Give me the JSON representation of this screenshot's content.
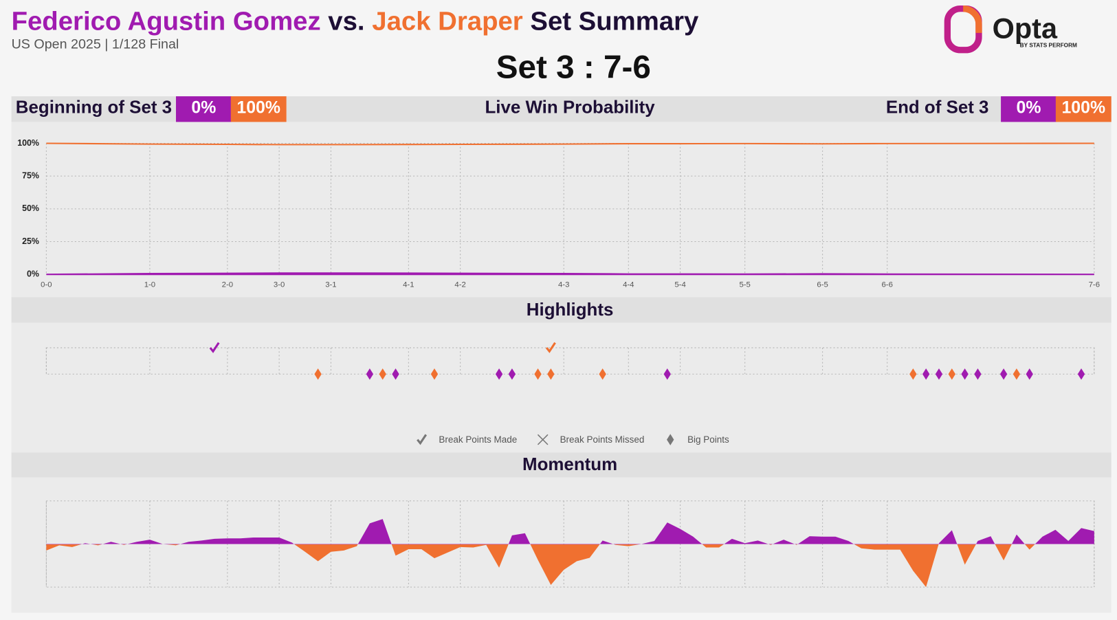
{
  "header": {
    "players": [
      {
        "name": "Federico Agustin Gomez",
        "color": "#a01bb0"
      },
      {
        "name": "Jack Draper",
        "color": "#f07030"
      }
    ],
    "vs": "vs.",
    "suffix": "Set Summary",
    "subtitle": "US Open 2025 | 1/128 Final",
    "score": "Set 3 : 7-6",
    "logo": "Opta",
    "logo_sub": "BY STATS PERFORM"
  },
  "win_bars": {
    "begin": {
      "label": "Beginning of Set 3",
      "values": [
        0,
        100
      ],
      "value_labels": [
        "0%",
        "100%"
      ]
    },
    "end": {
      "label": "End of Set 3",
      "values": [
        0,
        100
      ],
      "value_labels": [
        "0%",
        "100%"
      ]
    }
  },
  "chart_data": [
    {
      "type": "line",
      "title": "Live Win Probability",
      "x": [
        0,
        8,
        14,
        18,
        22,
        28,
        32,
        40,
        45,
        49,
        54,
        60,
        65,
        81
      ],
      "series": [
        {
          "name": "Federico Agustin Gomez",
          "color": "#a01bb0",
          "values": [
            0,
            0.6,
            0.8,
            1,
            1,
            0.9,
            0.8,
            0.6,
            0.3,
            0.3,
            0.2,
            0.4,
            0.2,
            0
          ]
        },
        {
          "name": "Jack Draper",
          "color": "#f07030",
          "values": [
            100,
            99.4,
            99.2,
            99,
            99,
            99.1,
            99.2,
            99.4,
            99.7,
            99.7,
            99.8,
            99.6,
            99.8,
            100
          ]
        }
      ],
      "xlim": [
        0,
        81
      ],
      "xticks": [
        {
          "value": 0,
          "label": "0-0"
        },
        {
          "value": 8,
          "label": "1-0"
        },
        {
          "value": 14,
          "label": "2-0"
        },
        {
          "value": 18,
          "label": "3-0"
        },
        {
          "value": 22,
          "label": "3-1"
        },
        {
          "value": 28,
          "label": "4-1"
        },
        {
          "value": 32,
          "label": "4-2"
        },
        {
          "value": 40,
          "label": "4-3"
        },
        {
          "value": 45,
          "label": "4-4"
        },
        {
          "value": 49,
          "label": "5-4"
        },
        {
          "value": 54,
          "label": "5-5"
        },
        {
          "value": 60,
          "label": "6-5"
        },
        {
          "value": 65,
          "label": "6-6"
        },
        {
          "value": 81,
          "label": "7-6"
        }
      ],
      "ylim": [
        0,
        100
      ],
      "yticks": [
        {
          "value": 0,
          "label": "0%"
        },
        {
          "value": 25,
          "label": "25%"
        },
        {
          "value": 50,
          "label": "50%"
        },
        {
          "value": 75,
          "label": "75%"
        },
        {
          "value": 100,
          "label": "100%"
        }
      ],
      "grid": true
    },
    {
      "type": "scatter",
      "title": "Highlights",
      "xlim": [
        0,
        81
      ],
      "series": [
        {
          "name": "Break Points Made",
          "marker": "check",
          "color": "#777777",
          "x": [
            13,
            39
          ],
          "point_colors": [
            "#a01bb0",
            "#f07030"
          ]
        },
        {
          "name": "Break Points Missed",
          "marker": "cross",
          "color": "#777777",
          "x": [],
          "point_colors": []
        },
        {
          "name": "Big Points",
          "marker": "diamond",
          "color": "#777777",
          "x": [
            21,
            25,
            26,
            27,
            30,
            35,
            36,
            38,
            39,
            43,
            48,
            67,
            68,
            69,
            70,
            71,
            72,
            74,
            75,
            76,
            80
          ],
          "point_colors": [
            "#f07030",
            "#a01bb0",
            "#f07030",
            "#a01bb0",
            "#f07030",
            "#a01bb0",
            "#a01bb0",
            "#f07030",
            "#f07030",
            "#f07030",
            "#a01bb0",
            "#f07030",
            "#a01bb0",
            "#a01bb0",
            "#f07030",
            "#a01bb0",
            "#a01bb0",
            "#a01bb0",
            "#f07030",
            "#a01bb0",
            "#a01bb0"
          ]
        }
      ],
      "grid": true
    },
    {
      "type": "area",
      "title": "Momentum",
      "xlim": [
        0,
        81
      ],
      "ylim": [
        -10,
        10
      ],
      "positive_color": "#a01bb0",
      "negative_color": "#f07030",
      "x": [
        0,
        1,
        2,
        3,
        4,
        5,
        6,
        7,
        8,
        9,
        10,
        11,
        12,
        13,
        14,
        15,
        16,
        17,
        18,
        19,
        20,
        21,
        22,
        23,
        24,
        25,
        26,
        27,
        28,
        29,
        30,
        31,
        32,
        33,
        34,
        35,
        36,
        37,
        38,
        39,
        40,
        41,
        42,
        43,
        44,
        45,
        46,
        47,
        48,
        49,
        50,
        51,
        52,
        53,
        54,
        55,
        56,
        57,
        58,
        59,
        60,
        61,
        62,
        63,
        64,
        65,
        66,
        67,
        68,
        69,
        70,
        71,
        72,
        73,
        74,
        75,
        76,
        77,
        78,
        79,
        80,
        81
      ],
      "values": [
        -1.5,
        -0.3,
        -0.7,
        0.2,
        -0.3,
        0.5,
        -0.2,
        0.5,
        1,
        0,
        -0.3,
        0.5,
        0.8,
        1.2,
        1.3,
        1.3,
        1.5,
        1.5,
        1.5,
        0.3,
        -1.8,
        -4,
        -1.8,
        -1.5,
        -0.5,
        4.8,
        5.8,
        -2.7,
        -1.2,
        -1.2,
        -3.3,
        -2,
        -0.7,
        -0.8,
        -0.2,
        -5.5,
        2,
        2.5,
        -3.7,
        -9.5,
        -6,
        -4,
        -3.2,
        0.8,
        -0.2,
        -0.5,
        0,
        0.7,
        5,
        3.5,
        1.7,
        -0.8,
        -0.8,
        1.2,
        0.2,
        0.8,
        -0.2,
        1,
        -0.2,
        1.8,
        1.7,
        1.7,
        0.7,
        -1,
        -1.3,
        -1.3,
        -1.3,
        -6.2,
        -10,
        0.2,
        3.2,
        -4.8,
        0.7,
        1.8,
        -3.8,
        2.2,
        -1.3,
        1.7,
        3.3,
        0.7,
        3.7,
        3
      ],
      "grid": true
    }
  ]
}
